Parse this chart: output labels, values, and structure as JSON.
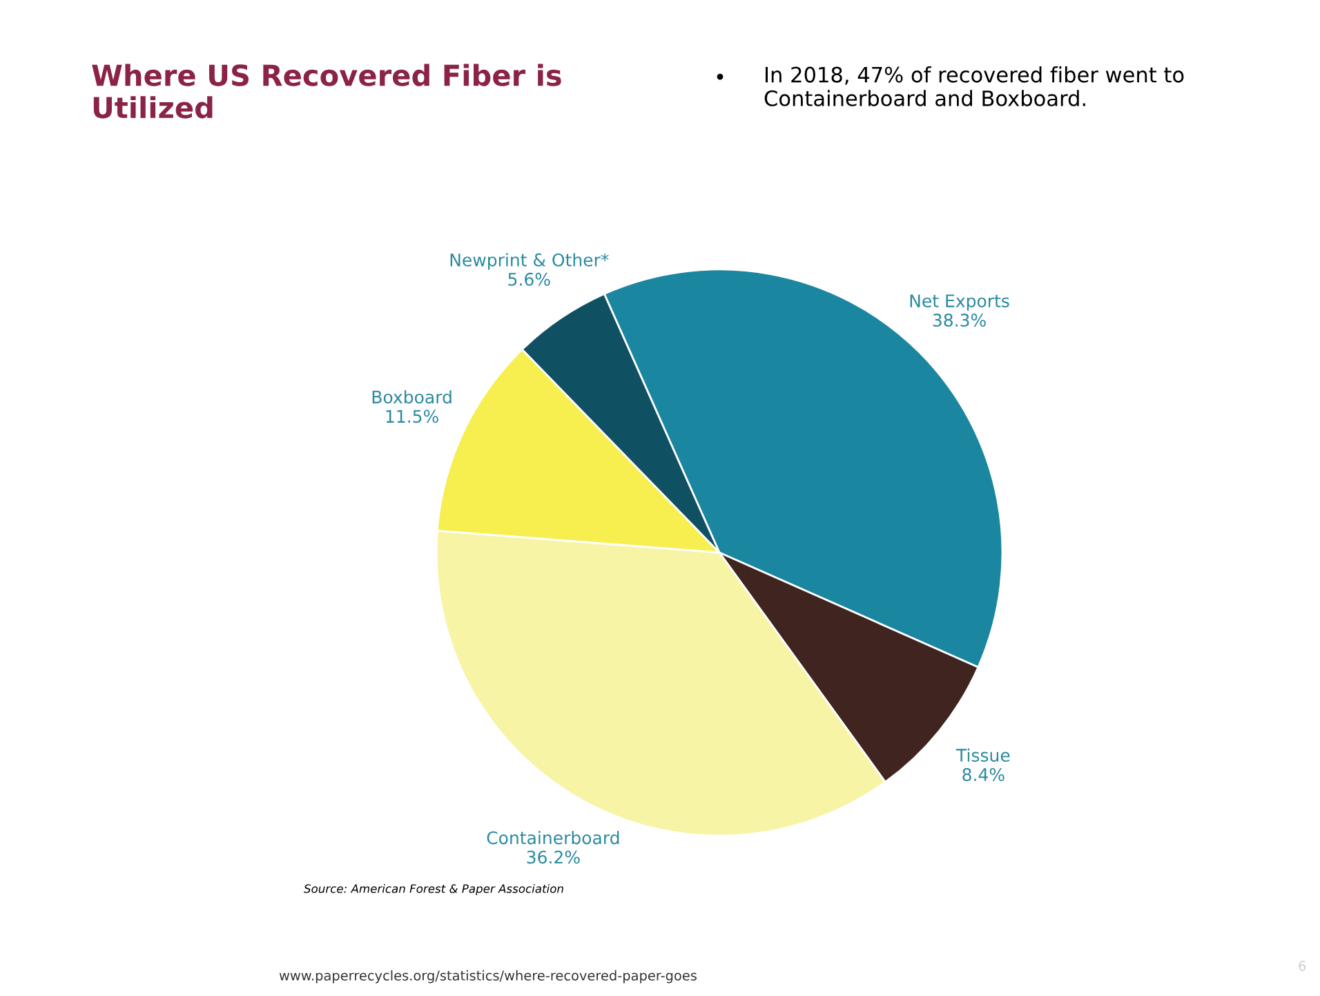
{
  "chart_data": {
    "type": "pie",
    "title": "Where US Recovered Fiber is Utilized",
    "categories": [
      "Net Exports",
      "Tissue",
      "Containerboard",
      "Boxboard",
      "Newprint & Other*"
    ],
    "values": [
      38.3,
      8.4,
      36.2,
      11.5,
      5.6
    ],
    "colors": [
      "#1a869f",
      "#3f2420",
      "#f8f4a6",
      "#f7ee50",
      "#0f5063"
    ],
    "value_labels": [
      "38.3%",
      "8.4%",
      "36.2%",
      "11.5%",
      "5.6%"
    ],
    "annotations": [
      "•",
      "In 2018, 47% of recovered fiber went to Containerboard and Boxboard.",
      "Source: American Forest & Paper Association",
      "www.paperrecycles.org/statistics/where-recovered-paper-goes",
      "6"
    ]
  }
}
